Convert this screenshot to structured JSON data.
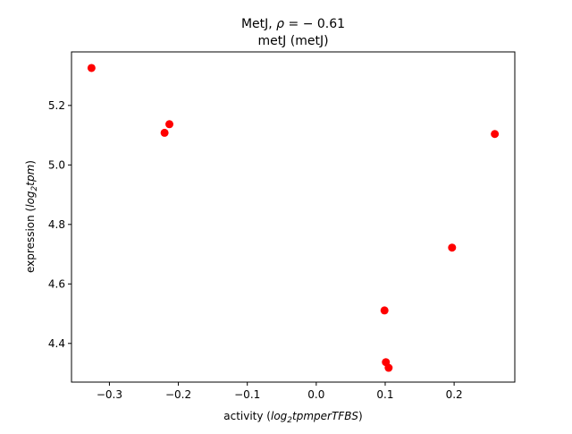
{
  "chart_data": {
    "type": "scatter",
    "title_main": "MetJ, ",
    "title_rho_symbol": "ρ",
    "title_rho_value": " = − 0.61",
    "subtitle": "metJ (metJ)",
    "xlabel_prefix": "activity (",
    "xlabel_math": "log",
    "xlabel_sub": "2",
    "xlabel_math_rest": "tpmperTFBS",
    "xlabel_suffix": ")",
    "ylabel_prefix": "expression (",
    "ylabel_math": "log",
    "ylabel_sub": "2",
    "ylabel_math_rest": "tpm",
    "ylabel_suffix": ")",
    "xlim": [
      -0.355,
      0.288
    ],
    "ylim": [
      4.27,
      5.38
    ],
    "xticks": [
      -0.3,
      -0.2,
      -0.1,
      0.0,
      0.1,
      0.2
    ],
    "xtick_labels": [
      "−0.3",
      "−0.2",
      "−0.1",
      "0.0",
      "0.1",
      "0.2"
    ],
    "yticks": [
      4.4,
      4.6,
      4.8,
      5.0,
      5.2
    ],
    "ytick_labels": [
      "4.4",
      "4.6",
      "4.8",
      "5.0",
      "5.2"
    ],
    "grid": false,
    "marker_color": "#ff0000",
    "points": [
      {
        "x": -0.326,
        "y": 5.326
      },
      {
        "x": -0.213,
        "y": 5.137
      },
      {
        "x": -0.22,
        "y": 5.108
      },
      {
        "x": 0.259,
        "y": 5.104
      },
      {
        "x": 0.197,
        "y": 4.722
      },
      {
        "x": 0.099,
        "y": 4.511
      },
      {
        "x": 0.101,
        "y": 4.337
      },
      {
        "x": 0.105,
        "y": 4.318
      }
    ]
  }
}
